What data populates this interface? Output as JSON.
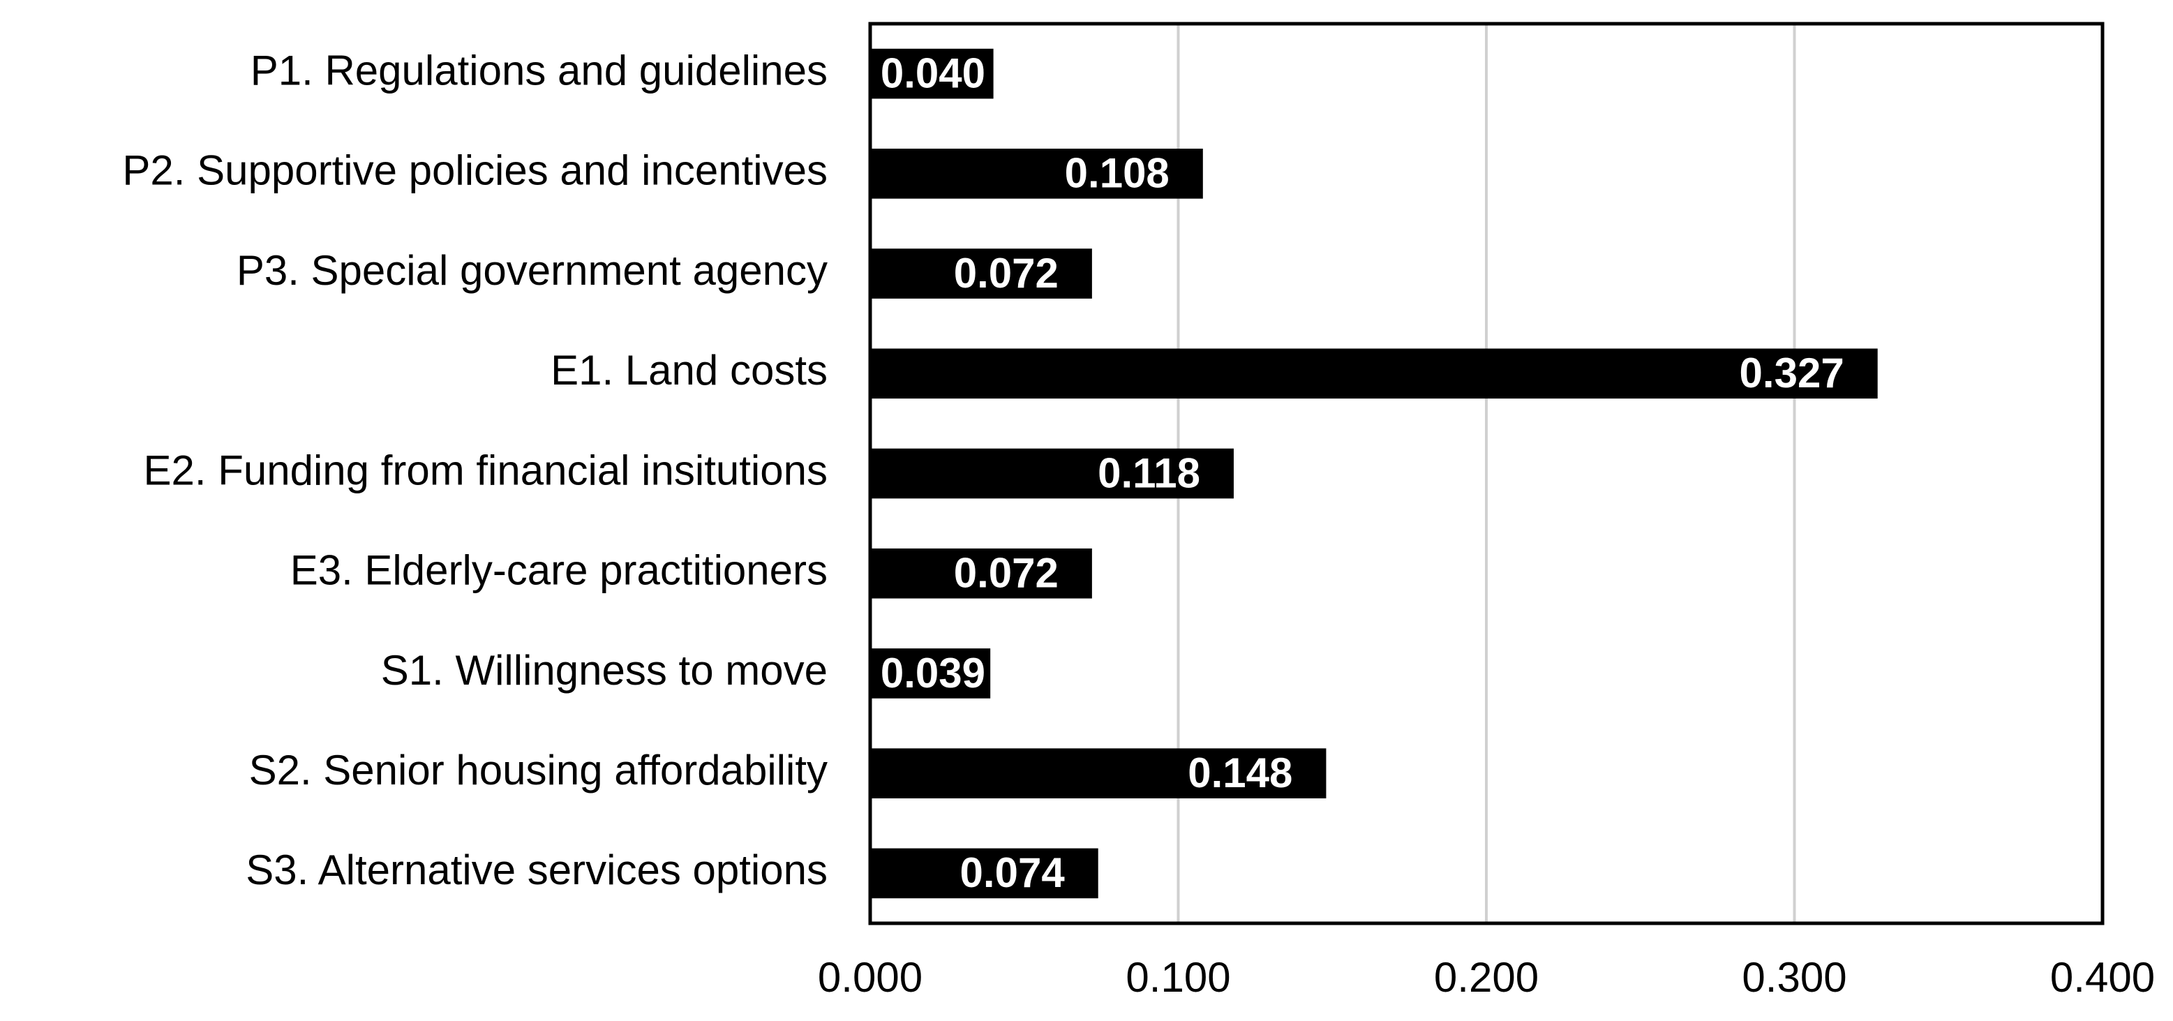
{
  "chart_data": {
    "type": "hbar",
    "categories": [
      "P1. Regulations and guidelines",
      "P2. Supportive policies and incentives",
      "P3. Special government agency",
      "E1. Land costs",
      "E2. Funding from financial insitutions",
      "E3. Elderly-care practitioners",
      "S1. Willingness to move",
      "S2. Senior housing affordability",
      "S3. Alternative services options"
    ],
    "values": [
      0.04,
      0.108,
      0.072,
      0.327,
      0.118,
      0.072,
      0.039,
      0.148,
      0.074
    ],
    "value_labels": [
      "0.040",
      "0.108",
      "0.072",
      "0.327",
      "0.118",
      "0.072",
      "0.039",
      "0.148",
      "0.074"
    ],
    "color": "#000000",
    "xlim": [
      0,
      0.4
    ],
    "xticks": [
      {
        "value": 0,
        "label": "0.000"
      },
      {
        "value": 0.1,
        "label": "0.100"
      },
      {
        "value": 0.2,
        "label": "0.200"
      },
      {
        "value": 0.3,
        "label": "0.300"
      },
      {
        "value": 0.4,
        "label": "0.400"
      }
    ],
    "grid": true
  }
}
